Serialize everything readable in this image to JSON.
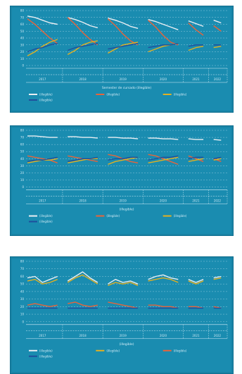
{
  "chart_data": [
    {
      "type": "line",
      "title": "",
      "xlabel": "Semester de cursado (illegible)",
      "ylabel": "",
      "groups": [
        "2017",
        "2018",
        "2019",
        "2020",
        "2021",
        "2022"
      ],
      "ylim": [
        0,
        80
      ],
      "grid": true,
      "legend_position": "bottom",
      "series": [
        {
          "name": "(illegible)",
          "color": "#e9eef3",
          "values": [
            72,
            70,
            66,
            62,
            60,
            70,
            67,
            63,
            58,
            55,
            69,
            66,
            62,
            57,
            54,
            67,
            64,
            60,
            56,
            52,
            65,
            61,
            57,
            66,
            62
          ]
        },
        {
          "name": "(illegible)",
          "color": "#e8643a",
          "values": [
            68,
            60,
            50,
            40,
            32,
            70,
            60,
            48,
            38,
            30,
            68,
            58,
            46,
            36,
            30,
            66,
            56,
            44,
            34,
            30,
            62,
            52,
            44,
            58,
            50
          ]
        },
        {
          "name": "(illegible)",
          "color": "#e2b021",
          "values": [
            14,
            20,
            28,
            34,
            38,
            16,
            22,
            30,
            34,
            36,
            18,
            24,
            30,
            32,
            34,
            20,
            24,
            28,
            30,
            32,
            22,
            26,
            28,
            26,
            28
          ]
        },
        {
          "name": "(illegible)",
          "color": "#1f4f9c",
          "values": [
            20,
            24,
            26,
            30,
            32,
            22,
            26,
            28,
            30,
            32,
            24,
            26,
            28,
            30,
            32,
            26,
            28,
            30,
            30,
            32,
            28,
            30,
            30,
            30,
            30
          ]
        }
      ]
    },
    {
      "type": "line",
      "title": "",
      "xlabel": "(illegible)",
      "ylabel": "",
      "groups": [
        "2017",
        "2018",
        "2019",
        "2020",
        "2021",
        "2022"
      ],
      "ylim": [
        0,
        80
      ],
      "grid": true,
      "legend_position": "bottom",
      "series": [
        {
          "name": "(illegible)",
          "color": "#e9eef3",
          "values": [
            72,
            72,
            71,
            70,
            70,
            71,
            71,
            70,
            70,
            69,
            70,
            70,
            69,
            69,
            68,
            69,
            69,
            68,
            68,
            67,
            68,
            67,
            67,
            67,
            66
          ]
        },
        {
          "name": "(illegible)",
          "color": "#e8643a",
          "values": [
            44,
            42,
            40,
            38,
            34,
            44,
            42,
            40,
            38,
            36,
            46,
            44,
            40,
            36,
            34,
            46,
            44,
            40,
            36,
            32,
            44,
            40,
            36,
            40,
            36
          ]
        },
        {
          "name": "(illegible)",
          "color": "#e2b021",
          "values": [
            34,
            36,
            38,
            38,
            40,
            34,
            36,
            38,
            40,
            40,
            32,
            36,
            38,
            40,
            42,
            34,
            36,
            38,
            40,
            42,
            36,
            38,
            40,
            38,
            40
          ]
        },
        {
          "name": "(illegible)",
          "color": "#1f4f9c",
          "values": [
            36,
            38,
            38,
            40,
            42,
            36,
            38,
            40,
            40,
            42,
            38,
            40,
            40,
            42,
            42,
            38,
            40,
            42,
            42,
            44,
            40,
            42,
            42,
            40,
            42
          ]
        }
      ]
    },
    {
      "type": "line",
      "title": "",
      "xlabel": "(illegible)",
      "ylabel": "",
      "groups": [
        "2017",
        "2018",
        "2019",
        "2020",
        "2021",
        "2022"
      ],
      "ylim": [
        0,
        80
      ],
      "grid": true,
      "legend_position": "bottom",
      "series": [
        {
          "name": "(illegible)",
          "color": "#e9eef3",
          "values": [
            58,
            60,
            52,
            56,
            60,
            54,
            60,
            66,
            58,
            52,
            50,
            56,
            52,
            54,
            50,
            56,
            60,
            62,
            58,
            56,
            56,
            52,
            56,
            58,
            60
          ]
        },
        {
          "name": "(illegible)",
          "color": "#e2b021",
          "values": [
            54,
            56,
            50,
            52,
            56,
            52,
            58,
            62,
            56,
            50,
            48,
            52,
            50,
            52,
            48,
            54,
            56,
            58,
            56,
            52,
            54,
            50,
            54,
            56,
            58
          ]
        },
        {
          "name": "(illegible)",
          "color": "#e8643a",
          "values": [
            22,
            24,
            22,
            20,
            22,
            24,
            26,
            22,
            20,
            22,
            26,
            24,
            22,
            20,
            18,
            22,
            22,
            20,
            20,
            18,
            20,
            20,
            18,
            20,
            18
          ]
        },
        {
          "name": "(illegible)",
          "color": "#1f4f9c",
          "values": [
            18,
            18,
            18,
            18,
            18,
            18,
            18,
            18,
            18,
            18,
            18,
            18,
            18,
            18,
            18,
            18,
            18,
            18,
            18,
            18,
            18,
            18,
            18,
            18,
            18
          ]
        }
      ]
    }
  ]
}
